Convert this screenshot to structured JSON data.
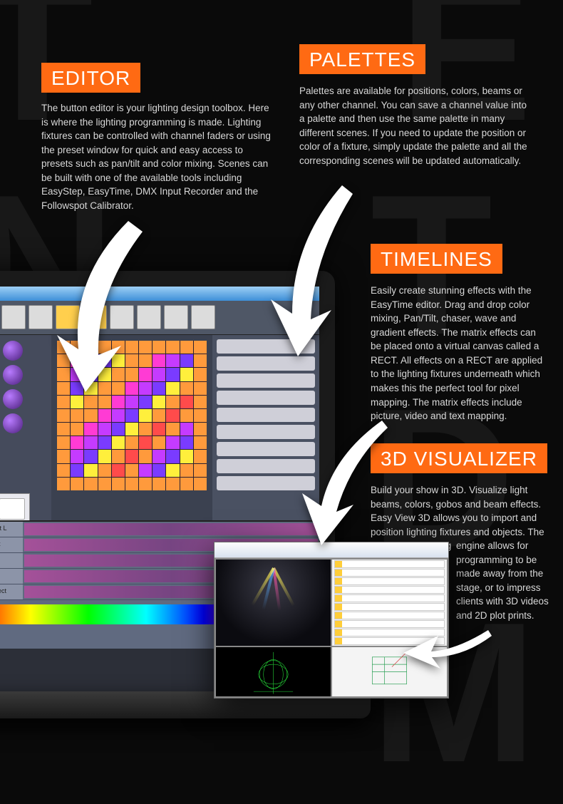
{
  "colors": {
    "background": "#0a0a0a",
    "accent": "#ff6a13",
    "text": "#d8d8d8",
    "arrow_fill": "#ffffff"
  },
  "bg_letters": "TELCOM",
  "sections": {
    "editor": {
      "title": "EDITOR",
      "body": "The button editor is your lighting design toolbox. Here is where the lighting programming is made. Lighting fixtures can be controlled with channel faders or using the preset window for quick and easy access to presets such as pan/tilt and color mixing. Scenes can be built with one of the available tools including EasyStep, EasyTime, DMX Input Recorder and the Followspot Calibrator."
    },
    "palettes": {
      "title": "PALETTES",
      "body": "Palettes are available for positions, colors, beams or any other channel. You can save a channel value into a palette and then use the same palette in many different scenes. If you need to update the position or color of a fixture, simply update the palette and all the corresponding scenes will be updated automatically."
    },
    "timelines": {
      "title": "TIMELINES",
      "body": "Easily create stunning effects with the EasyTime editor. Drag and drop color mixing, Pan/Tilt, chaser, wave and gradient effects. The matrix effects can be placed onto a virtual canvas called a RECT. All effects on a RECT are applied to the lighting fixtures underneath which makes this the perfect tool for pixel mapping. The matrix effects include picture, video and text mapping."
    },
    "visualizer": {
      "title": "3D VISUALIZER",
      "body1": "Build your show in 3D. Visualize light beams, colors, gobos and beam effects. Easy View 3D allows you to import and position lighting fixtures and objects. The real-time rendering",
      "body2": "engine allows for programming to be made away from the stage, or to impress clients with 3D videos and 2D plot prints."
    }
  },
  "laptop_app": {
    "ribbon_button_count": 9,
    "ribbon_active_indexes": [
      3,
      4
    ],
    "fixture_dot_count": 8,
    "matrix": {
      "size": 11,
      "palette": [
        "#ff9a3c",
        "#ff4b4b",
        "#ff3bd4",
        "#c53bff",
        "#7a3bff",
        "#ffef3c"
      ]
    },
    "right_panel_buttons": [
      "Advance",
      "Outline",
      "Center",
      "Middle",
      "End 1",
      "End 2",
      "Grid Swap",
      "Gen Swap",
      "Straight"
    ],
    "timeline_tracks": [
      "Constant L",
      "Gradient",
      "Color",
      "Pan Tilt",
      "MatrixRect"
    ]
  },
  "viz_window": {
    "beam_colors": [
      "#ffee55",
      "#ff55aa",
      "#55aaff"
    ],
    "wireframe_color": "#27e03a",
    "plan_color": "#2aa054",
    "fixture_rows": 10
  }
}
